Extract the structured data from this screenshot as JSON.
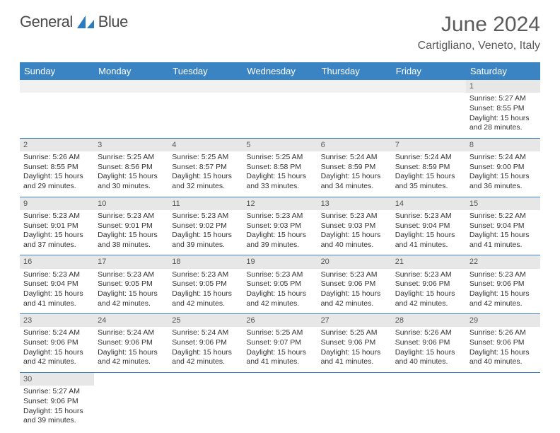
{
  "brand": {
    "part1": "General",
    "part2": "Blue",
    "logo_fill": "#2b7bbf",
    "text_gray": "#4a4a4a"
  },
  "title": "June 2024",
  "location": "Cartigliano, Veneto, Italy",
  "colors": {
    "header_bg": "#3b84c4",
    "header_fg": "#ffffff",
    "daynum_bg": "#e7e7e7",
    "rule": "#3b84c4"
  },
  "weekdays": [
    "Sunday",
    "Monday",
    "Tuesday",
    "Wednesday",
    "Thursday",
    "Friday",
    "Saturday"
  ],
  "weeks": [
    [
      null,
      null,
      null,
      null,
      null,
      null,
      {
        "n": "1",
        "sr": "Sunrise: 5:27 AM",
        "ss": "Sunset: 8:55 PM",
        "d1": "Daylight: 15 hours",
        "d2": "and 28 minutes."
      }
    ],
    [
      {
        "n": "2",
        "sr": "Sunrise: 5:26 AM",
        "ss": "Sunset: 8:55 PM",
        "d1": "Daylight: 15 hours",
        "d2": "and 29 minutes."
      },
      {
        "n": "3",
        "sr": "Sunrise: 5:25 AM",
        "ss": "Sunset: 8:56 PM",
        "d1": "Daylight: 15 hours",
        "d2": "and 30 minutes."
      },
      {
        "n": "4",
        "sr": "Sunrise: 5:25 AM",
        "ss": "Sunset: 8:57 PM",
        "d1": "Daylight: 15 hours",
        "d2": "and 32 minutes."
      },
      {
        "n": "5",
        "sr": "Sunrise: 5:25 AM",
        "ss": "Sunset: 8:58 PM",
        "d1": "Daylight: 15 hours",
        "d2": "and 33 minutes."
      },
      {
        "n": "6",
        "sr": "Sunrise: 5:24 AM",
        "ss": "Sunset: 8:59 PM",
        "d1": "Daylight: 15 hours",
        "d2": "and 34 minutes."
      },
      {
        "n": "7",
        "sr": "Sunrise: 5:24 AM",
        "ss": "Sunset: 8:59 PM",
        "d1": "Daylight: 15 hours",
        "d2": "and 35 minutes."
      },
      {
        "n": "8",
        "sr": "Sunrise: 5:24 AM",
        "ss": "Sunset: 9:00 PM",
        "d1": "Daylight: 15 hours",
        "d2": "and 36 minutes."
      }
    ],
    [
      {
        "n": "9",
        "sr": "Sunrise: 5:23 AM",
        "ss": "Sunset: 9:01 PM",
        "d1": "Daylight: 15 hours",
        "d2": "and 37 minutes."
      },
      {
        "n": "10",
        "sr": "Sunrise: 5:23 AM",
        "ss": "Sunset: 9:01 PM",
        "d1": "Daylight: 15 hours",
        "d2": "and 38 minutes."
      },
      {
        "n": "11",
        "sr": "Sunrise: 5:23 AM",
        "ss": "Sunset: 9:02 PM",
        "d1": "Daylight: 15 hours",
        "d2": "and 39 minutes."
      },
      {
        "n": "12",
        "sr": "Sunrise: 5:23 AM",
        "ss": "Sunset: 9:03 PM",
        "d1": "Daylight: 15 hours",
        "d2": "and 39 minutes."
      },
      {
        "n": "13",
        "sr": "Sunrise: 5:23 AM",
        "ss": "Sunset: 9:03 PM",
        "d1": "Daylight: 15 hours",
        "d2": "and 40 minutes."
      },
      {
        "n": "14",
        "sr": "Sunrise: 5:23 AM",
        "ss": "Sunset: 9:04 PM",
        "d1": "Daylight: 15 hours",
        "d2": "and 41 minutes."
      },
      {
        "n": "15",
        "sr": "Sunrise: 5:22 AM",
        "ss": "Sunset: 9:04 PM",
        "d1": "Daylight: 15 hours",
        "d2": "and 41 minutes."
      }
    ],
    [
      {
        "n": "16",
        "sr": "Sunrise: 5:23 AM",
        "ss": "Sunset: 9:04 PM",
        "d1": "Daylight: 15 hours",
        "d2": "and 41 minutes."
      },
      {
        "n": "17",
        "sr": "Sunrise: 5:23 AM",
        "ss": "Sunset: 9:05 PM",
        "d1": "Daylight: 15 hours",
        "d2": "and 42 minutes."
      },
      {
        "n": "18",
        "sr": "Sunrise: 5:23 AM",
        "ss": "Sunset: 9:05 PM",
        "d1": "Daylight: 15 hours",
        "d2": "and 42 minutes."
      },
      {
        "n": "19",
        "sr": "Sunrise: 5:23 AM",
        "ss": "Sunset: 9:05 PM",
        "d1": "Daylight: 15 hours",
        "d2": "and 42 minutes."
      },
      {
        "n": "20",
        "sr": "Sunrise: 5:23 AM",
        "ss": "Sunset: 9:06 PM",
        "d1": "Daylight: 15 hours",
        "d2": "and 42 minutes."
      },
      {
        "n": "21",
        "sr": "Sunrise: 5:23 AM",
        "ss": "Sunset: 9:06 PM",
        "d1": "Daylight: 15 hours",
        "d2": "and 42 minutes."
      },
      {
        "n": "22",
        "sr": "Sunrise: 5:23 AM",
        "ss": "Sunset: 9:06 PM",
        "d1": "Daylight: 15 hours",
        "d2": "and 42 minutes."
      }
    ],
    [
      {
        "n": "23",
        "sr": "Sunrise: 5:24 AM",
        "ss": "Sunset: 9:06 PM",
        "d1": "Daylight: 15 hours",
        "d2": "and 42 minutes."
      },
      {
        "n": "24",
        "sr": "Sunrise: 5:24 AM",
        "ss": "Sunset: 9:06 PM",
        "d1": "Daylight: 15 hours",
        "d2": "and 42 minutes."
      },
      {
        "n": "25",
        "sr": "Sunrise: 5:24 AM",
        "ss": "Sunset: 9:06 PM",
        "d1": "Daylight: 15 hours",
        "d2": "and 42 minutes."
      },
      {
        "n": "26",
        "sr": "Sunrise: 5:25 AM",
        "ss": "Sunset: 9:07 PM",
        "d1": "Daylight: 15 hours",
        "d2": "and 41 minutes."
      },
      {
        "n": "27",
        "sr": "Sunrise: 5:25 AM",
        "ss": "Sunset: 9:06 PM",
        "d1": "Daylight: 15 hours",
        "d2": "and 41 minutes."
      },
      {
        "n": "28",
        "sr": "Sunrise: 5:26 AM",
        "ss": "Sunset: 9:06 PM",
        "d1": "Daylight: 15 hours",
        "d2": "and 40 minutes."
      },
      {
        "n": "29",
        "sr": "Sunrise: 5:26 AM",
        "ss": "Sunset: 9:06 PM",
        "d1": "Daylight: 15 hours",
        "d2": "and 40 minutes."
      }
    ],
    [
      {
        "n": "30",
        "sr": "Sunrise: 5:27 AM",
        "ss": "Sunset: 9:06 PM",
        "d1": "Daylight: 15 hours",
        "d2": "and 39 minutes."
      },
      null,
      null,
      null,
      null,
      null,
      null
    ]
  ]
}
